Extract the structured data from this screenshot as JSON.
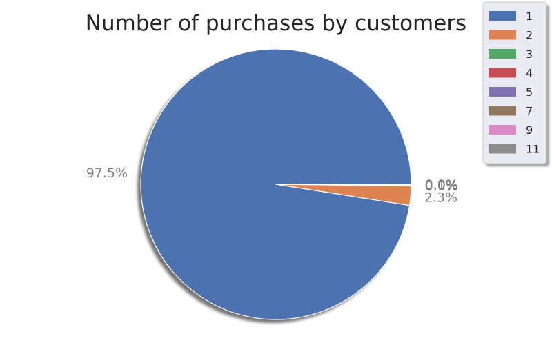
{
  "chart_data": {
    "type": "pie",
    "title": "Number of purchases by customers",
    "categories": [
      "1",
      "2",
      "3",
      "4",
      "5",
      "7",
      "9",
      "11"
    ],
    "values": [
      97.5,
      2.3,
      0.1,
      0.05,
      0.02,
      0.01,
      0.01,
      0.01
    ],
    "labels": [
      "97.5%",
      "2.3%",
      "0.1%",
      "0.0%",
      "0.0%",
      "0.0%",
      "0.0%",
      "0.0%"
    ],
    "colors": [
      "#4c72b0",
      "#dd8452",
      "#55a868",
      "#c44e52",
      "#8172b3",
      "#937860",
      "#da8bc3",
      "#8c8c8c"
    ],
    "start_angle_deg": 0,
    "direction": "counterclockwise",
    "shadow": true,
    "legend": {
      "position": "top-right",
      "entries": [
        "1",
        "2",
        "3",
        "4",
        "5",
        "7",
        "9",
        "11"
      ]
    }
  }
}
